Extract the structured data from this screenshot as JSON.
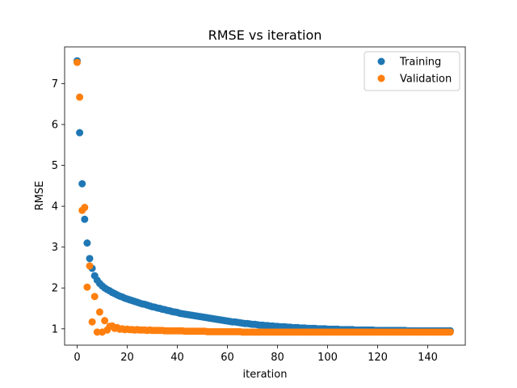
{
  "chart_data": {
    "type": "scatter",
    "title": "RMSE vs iteration",
    "xlabel": "iteration",
    "ylabel": "RMSE",
    "xlim": [
      -5,
      155
    ],
    "ylim": [
      0.6,
      7.9
    ],
    "xticks": [
      0,
      20,
      40,
      60,
      80,
      100,
      120,
      140
    ],
    "yticks": [
      1,
      2,
      3,
      4,
      5,
      6,
      7
    ],
    "grid": false,
    "legend_position": "top-right",
    "series": [
      {
        "name": "Training",
        "color": "#1f77b4",
        "x": [
          0,
          1,
          2,
          3,
          4,
          5,
          6,
          7,
          8,
          9,
          10,
          11,
          12,
          13,
          14,
          15,
          16,
          17,
          18,
          19,
          20,
          21,
          22,
          23,
          24,
          25,
          26,
          27,
          28,
          29,
          30,
          31,
          32,
          33,
          34,
          35,
          36,
          37,
          38,
          39,
          40,
          41,
          42,
          43,
          44,
          45,
          46,
          47,
          48,
          49,
          50,
          51,
          52,
          53,
          54,
          55,
          56,
          57,
          58,
          59,
          60,
          61,
          62,
          63,
          64,
          65,
          66,
          67,
          68,
          69,
          70,
          71,
          72,
          73,
          74,
          75,
          76,
          77,
          78,
          79,
          80,
          81,
          82,
          83,
          84,
          85,
          86,
          87,
          88,
          89,
          90,
          91,
          92,
          93,
          94,
          95,
          96,
          97,
          98,
          99,
          100,
          101,
          102,
          103,
          104,
          105,
          106,
          107,
          108,
          109,
          110,
          111,
          112,
          113,
          114,
          115,
          116,
          117,
          118,
          119,
          120,
          121,
          122,
          123,
          124,
          125,
          126,
          127,
          128,
          129,
          130,
          131,
          132,
          133,
          134,
          135,
          136,
          137,
          138,
          139,
          140,
          141,
          142,
          143,
          144,
          145,
          146,
          147,
          148,
          149
        ],
        "y": [
          7.56,
          5.8,
          4.55,
          3.68,
          3.1,
          2.72,
          2.48,
          2.3,
          2.19,
          2.11,
          2.05,
          2.0,
          1.96,
          1.93,
          1.89,
          1.86,
          1.83,
          1.8,
          1.78,
          1.75,
          1.73,
          1.71,
          1.69,
          1.67,
          1.65,
          1.63,
          1.61,
          1.6,
          1.58,
          1.56,
          1.54,
          1.53,
          1.51,
          1.5,
          1.48,
          1.47,
          1.45,
          1.44,
          1.42,
          1.41,
          1.4,
          1.38,
          1.37,
          1.36,
          1.35,
          1.34,
          1.33,
          1.32,
          1.31,
          1.3,
          1.29,
          1.28,
          1.27,
          1.26,
          1.25,
          1.24,
          1.23,
          1.22,
          1.21,
          1.2,
          1.19,
          1.18,
          1.17,
          1.17,
          1.16,
          1.15,
          1.14,
          1.13,
          1.13,
          1.12,
          1.11,
          1.11,
          1.1,
          1.09,
          1.09,
          1.08,
          1.08,
          1.07,
          1.07,
          1.06,
          1.06,
          1.05,
          1.05,
          1.05,
          1.04,
          1.04,
          1.03,
          1.03,
          1.03,
          1.02,
          1.02,
          1.02,
          1.01,
          1.01,
          1.01,
          1.01,
          1.0,
          1.0,
          1.0,
          1.0,
          0.99,
          0.99,
          0.99,
          0.99,
          0.99,
          0.98,
          0.98,
          0.98,
          0.98,
          0.98,
          0.98,
          0.97,
          0.97,
          0.97,
          0.97,
          0.97,
          0.97,
          0.97,
          0.97,
          0.96,
          0.96,
          0.96,
          0.96,
          0.96,
          0.96,
          0.96,
          0.96,
          0.96,
          0.96,
          0.96,
          0.96,
          0.96,
          0.95,
          0.95,
          0.95,
          0.95,
          0.95,
          0.95,
          0.95,
          0.95,
          0.95,
          0.95,
          0.95,
          0.95,
          0.95,
          0.95,
          0.95,
          0.95,
          0.95,
          0.95
        ]
      },
      {
        "name": "Validation",
        "color": "#ff7f0e",
        "x": [
          0,
          1,
          2,
          3,
          4,
          5,
          6,
          7,
          8,
          9,
          10,
          11,
          12,
          13,
          14,
          15,
          16,
          17,
          18,
          19,
          20,
          21,
          22,
          23,
          24,
          25,
          26,
          27,
          28,
          29,
          30,
          31,
          32,
          33,
          34,
          35,
          36,
          37,
          38,
          39,
          40,
          41,
          42,
          43,
          44,
          45,
          46,
          47,
          48,
          49,
          50,
          51,
          52,
          53,
          54,
          55,
          56,
          57,
          58,
          59,
          60,
          61,
          62,
          63,
          64,
          65,
          66,
          67,
          68,
          69,
          70,
          71,
          72,
          73,
          74,
          75,
          76,
          77,
          78,
          79,
          80,
          81,
          82,
          83,
          84,
          85,
          86,
          87,
          88,
          89,
          90,
          91,
          92,
          93,
          94,
          95,
          96,
          97,
          98,
          99,
          100,
          101,
          102,
          103,
          104,
          105,
          106,
          107,
          108,
          109,
          110,
          111,
          112,
          113,
          114,
          115,
          116,
          117,
          118,
          119,
          120,
          121,
          122,
          123,
          124,
          125,
          126,
          127,
          128,
          129,
          130,
          131,
          132,
          133,
          134,
          135,
          136,
          137,
          138,
          139,
          140,
          141,
          142,
          143,
          144,
          145,
          146,
          147,
          148,
          149
        ],
        "y": [
          7.52,
          6.67,
          3.9,
          3.97,
          2.02,
          2.54,
          1.17,
          1.79,
          0.92,
          1.41,
          0.92,
          1.2,
          0.97,
          1.06,
          1.07,
          1.01,
          1.03,
          0.99,
          1.0,
          0.98,
          0.99,
          0.98,
          0.98,
          0.97,
          0.98,
          0.97,
          0.97,
          0.97,
          0.96,
          0.97,
          0.96,
          0.96,
          0.96,
          0.96,
          0.96,
          0.95,
          0.95,
          0.95,
          0.95,
          0.95,
          0.95,
          0.95,
          0.95,
          0.94,
          0.94,
          0.94,
          0.94,
          0.94,
          0.94,
          0.94,
          0.94,
          0.94,
          0.93,
          0.93,
          0.93,
          0.93,
          0.93,
          0.93,
          0.93,
          0.93,
          0.93,
          0.93,
          0.93,
          0.93,
          0.93,
          0.93,
          0.92,
          0.92,
          0.92,
          0.92,
          0.92,
          0.92,
          0.92,
          0.92,
          0.92,
          0.92,
          0.92,
          0.92,
          0.92,
          0.92,
          0.92,
          0.92,
          0.92,
          0.92,
          0.92,
          0.92,
          0.92,
          0.92,
          0.92,
          0.92,
          0.92,
          0.92,
          0.92,
          0.92,
          0.92,
          0.92,
          0.92,
          0.92,
          0.92,
          0.92,
          0.92,
          0.92,
          0.92,
          0.92,
          0.92,
          0.92,
          0.92,
          0.92,
          0.92,
          0.92,
          0.92,
          0.92,
          0.92,
          0.92,
          0.92,
          0.92,
          0.92,
          0.92,
          0.92,
          0.92,
          0.92,
          0.92,
          0.92,
          0.92,
          0.92,
          0.92,
          0.92,
          0.92,
          0.92,
          0.92,
          0.92,
          0.92,
          0.92,
          0.92,
          0.92,
          0.92,
          0.92,
          0.92,
          0.92,
          0.92,
          0.92,
          0.92,
          0.92,
          0.92,
          0.92,
          0.92,
          0.92,
          0.92,
          0.92,
          0.92
        ]
      }
    ]
  }
}
